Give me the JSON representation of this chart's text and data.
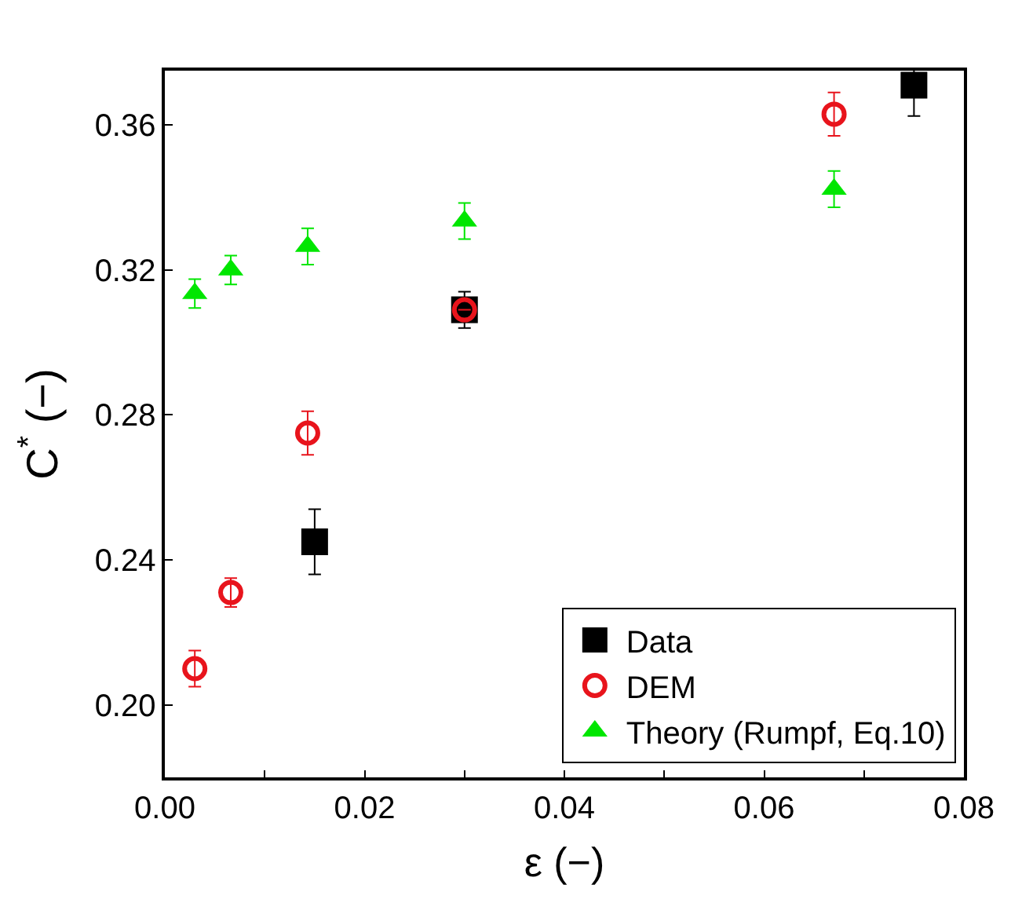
{
  "chart_data": {
    "type": "scatter",
    "xlabel": "ε (−)",
    "ylabel": "C$^{*}$ (−)",
    "xlim": [
      0,
      0.08
    ],
    "ylim": [
      0.18,
      0.375
    ],
    "xticks": [
      {
        "value": 0,
        "label": "0.00"
      },
      {
        "value": 0.01,
        "label": null
      },
      {
        "value": 0.02,
        "label": "0.02"
      },
      {
        "value": 0.03,
        "label": null
      },
      {
        "value": 0.04,
        "label": "0.04"
      },
      {
        "value": 0.05,
        "label": null
      },
      {
        "value": 0.06,
        "label": "0.06"
      },
      {
        "value": 0.07,
        "label": null
      },
      {
        "value": 0.08,
        "label": "0.08"
      }
    ],
    "yticks": [
      {
        "value": 0.2,
        "label": "0.20"
      },
      0.24,
      0.28,
      0.32,
      0.36
    ],
    "legend": "bottom right",
    "series": [
      {
        "name": "Data",
        "color": "#000000",
        "marker": "square",
        "x": [
          0.015,
          0.03,
          0.075
        ],
        "values": [
          0.245,
          0.309,
          0.371
        ],
        "errors": [
          0.009,
          0.005,
          0.0085
        ]
      },
      {
        "name": "DEM",
        "color": "#e8141c",
        "marker": "circle-open",
        "x": [
          0.003,
          0.0066,
          0.0143,
          0.03,
          0.067
        ],
        "values": [
          0.21,
          0.231,
          0.275,
          0.309,
          0.363
        ],
        "errors": [
          0.005,
          0.004,
          0.006,
          null,
          0.006
        ]
      },
      {
        "name": "Theory (Rumpf, Eq.10)",
        "color": "#00e600",
        "marker": "triangle",
        "x": [
          0.003,
          0.0066,
          0.0143,
          0.03,
          0.067
        ],
        "values": [
          0.3135,
          0.32,
          0.3265,
          0.3335,
          0.3423
        ],
        "errors": [
          0.004,
          0.004,
          0.005,
          0.005,
          0.005
        ]
      }
    ]
  }
}
